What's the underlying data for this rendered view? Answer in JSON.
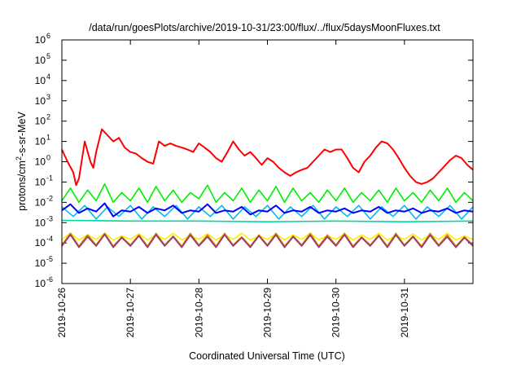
{
  "chart_data": {
    "type": "line",
    "title": "/data/run/goesPlots/archive/2019-10-31/23:00/flux/../flux/5daysMoonFluxes.txt",
    "xlabel": "Coordinated Universal Time (UTC)",
    "ylabel_main": "protons/cm",
    "ylabel_sup": "2",
    "ylabel_rest": "-s-sr-MeV",
    "y_scale": "log",
    "ylim": [
      1e-06,
      1000000.0
    ],
    "xlim": [
      "2019-10-26",
      "2019-11-01"
    ],
    "grid": false,
    "legend": "none",
    "x_ticks": [
      "2019-10-26",
      "2019-10-27",
      "2019-10-28",
      "2019-10-29",
      "2019-10-30",
      "2019-10-31"
    ],
    "y_ticks": [
      {
        "value": 1000000.0,
        "base": "10",
        "exp": "6"
      },
      {
        "value": 100000.0,
        "base": "10",
        "exp": "5"
      },
      {
        "value": 10000.0,
        "base": "10",
        "exp": "4"
      },
      {
        "value": 1000.0,
        "base": "10",
        "exp": "3"
      },
      {
        "value": 100.0,
        "base": "10",
        "exp": "2"
      },
      {
        "value": 10.0,
        "base": "10",
        "exp": "1"
      },
      {
        "value": 1.0,
        "base": "10",
        "exp": "0"
      },
      {
        "value": 0.1,
        "base": "10",
        "exp": "-1"
      },
      {
        "value": 0.01,
        "base": "10",
        "exp": "-2"
      },
      {
        "value": 0.001,
        "base": "10",
        "exp": "-3"
      },
      {
        "value": 0.0001,
        "base": "10",
        "exp": "-4"
      },
      {
        "value": 1e-05,
        "base": "10",
        "exp": "-5"
      },
      {
        "value": 1e-06,
        "base": "10",
        "exp": "-6"
      }
    ],
    "series": [
      {
        "color": "#ff0000",
        "x": [
          "2019-10-26T00:00",
          "2019-10-26T02:00",
          "2019-10-26T04:00",
          "2019-10-26T05:00",
          "2019-10-26T06:00",
          "2019-10-26T08:00",
          "2019-10-26T10:00",
          "2019-10-26T11:00",
          "2019-10-26T12:00",
          "2019-10-26T14:00",
          "2019-10-26T16:00",
          "2019-10-26T18:00",
          "2019-10-26T20:00",
          "2019-10-26T22:00",
          "2019-10-27T00:00",
          "2019-10-27T02:00",
          "2019-10-27T04:00",
          "2019-10-27T06:00",
          "2019-10-27T08:00",
          "2019-10-27T10:00",
          "2019-10-27T12:00",
          "2019-10-27T14:00",
          "2019-10-27T16:00",
          "2019-10-27T18:00",
          "2019-10-27T20:00",
          "2019-10-27T22:00",
          "2019-10-28T00:00",
          "2019-10-28T02:00",
          "2019-10-28T04:00",
          "2019-10-28T06:00",
          "2019-10-28T08:00",
          "2019-10-28T10:00",
          "2019-10-28T12:00",
          "2019-10-28T14:00",
          "2019-10-28T16:00",
          "2019-10-28T18:00",
          "2019-10-28T20:00",
          "2019-10-28T22:00",
          "2019-10-29T00:00",
          "2019-10-29T02:00",
          "2019-10-29T04:00",
          "2019-10-29T06:00",
          "2019-10-29T08:00",
          "2019-10-29T10:00",
          "2019-10-29T12:00",
          "2019-10-29T14:00",
          "2019-10-29T16:00",
          "2019-10-29T18:00",
          "2019-10-29T20:00",
          "2019-10-29T22:00",
          "2019-10-30T00:00",
          "2019-10-30T02:00",
          "2019-10-30T04:00",
          "2019-10-30T06:00",
          "2019-10-30T08:00",
          "2019-10-30T10:00",
          "2019-10-30T12:00",
          "2019-10-30T14:00",
          "2019-10-30T16:00",
          "2019-10-30T18:00",
          "2019-10-30T20:00",
          "2019-10-30T22:00",
          "2019-10-31T00:00",
          "2019-10-31T02:00",
          "2019-10-31T04:00",
          "2019-10-31T06:00",
          "2019-10-31T08:00",
          "2019-10-31T10:00",
          "2019-10-31T12:00",
          "2019-10-31T14:00",
          "2019-10-31T16:00",
          "2019-10-31T18:00",
          "2019-10-31T20:00",
          "2019-10-31T22:00",
          "2019-11-01T00:00"
        ],
        "y": [
          4,
          1,
          0.3,
          0.07,
          0.15,
          10,
          1,
          0.5,
          3,
          40,
          20,
          10,
          15,
          5,
          3,
          2.5,
          1.5,
          1,
          0.8,
          10,
          6,
          8,
          6,
          5,
          4,
          3,
          8,
          5,
          3,
          1.5,
          1,
          3,
          10,
          4,
          2,
          3,
          1.5,
          0.7,
          1.5,
          1,
          0.5,
          0.3,
          0.2,
          0.3,
          0.4,
          0.5,
          1,
          2,
          4,
          3,
          4,
          4,
          1.5,
          0.5,
          0.3,
          1,
          2,
          5,
          10,
          8,
          4,
          1.5,
          0.5,
          0.2,
          0.1,
          0.08,
          0.1,
          0.15,
          0.3,
          0.6,
          1.2,
          2,
          1.5,
          0.7,
          0.4
        ]
      },
      {
        "color": "#00ee00",
        "x": [
          "2019-10-26T00:00",
          "2019-10-26T03:00",
          "2019-10-26T06:00",
          "2019-10-26T09:00",
          "2019-10-26T12:00",
          "2019-10-26T15:00",
          "2019-10-26T18:00",
          "2019-10-26T21:00",
          "2019-10-27T00:00",
          "2019-10-27T03:00",
          "2019-10-27T06:00",
          "2019-10-27T09:00",
          "2019-10-27T12:00",
          "2019-10-27T15:00",
          "2019-10-27T18:00",
          "2019-10-27T21:00",
          "2019-10-28T00:00",
          "2019-10-28T03:00",
          "2019-10-28T06:00",
          "2019-10-28T09:00",
          "2019-10-28T12:00",
          "2019-10-28T15:00",
          "2019-10-28T18:00",
          "2019-10-28T21:00",
          "2019-10-29T00:00",
          "2019-10-29T03:00",
          "2019-10-29T06:00",
          "2019-10-29T09:00",
          "2019-10-29T12:00",
          "2019-10-29T15:00",
          "2019-10-29T18:00",
          "2019-10-29T21:00",
          "2019-10-30T00:00",
          "2019-10-30T03:00",
          "2019-10-30T06:00",
          "2019-10-30T09:00",
          "2019-10-30T12:00",
          "2019-10-30T15:00",
          "2019-10-30T18:00",
          "2019-10-30T21:00",
          "2019-10-31T00:00",
          "2019-10-31T03:00",
          "2019-10-31T06:00",
          "2019-10-31T09:00",
          "2019-10-31T12:00",
          "2019-10-31T15:00",
          "2019-10-31T18:00",
          "2019-10-31T21:00",
          "2019-11-01T00:00"
        ],
        "y": [
          0.012,
          0.05,
          0.01,
          0.04,
          0.012,
          0.08,
          0.01,
          0.03,
          0.012,
          0.05,
          0.01,
          0.06,
          0.012,
          0.04,
          0.01,
          0.03,
          0.015,
          0.07,
          0.01,
          0.03,
          0.012,
          0.05,
          0.01,
          0.04,
          0.012,
          0.06,
          0.01,
          0.05,
          0.012,
          0.03,
          0.01,
          0.04,
          0.012,
          0.05,
          0.01,
          0.03,
          0.012,
          0.04,
          0.01,
          0.05,
          0.012,
          0.03,
          0.01,
          0.04,
          0.012,
          0.05,
          0.01,
          0.03,
          0.012
        ]
      },
      {
        "color": "#00bbee",
        "x": [
          "2019-10-26T00:00",
          "2019-10-26T04:00",
          "2019-10-26T08:00",
          "2019-10-26T12:00",
          "2019-10-26T16:00",
          "2019-10-26T20:00",
          "2019-10-27T00:00",
          "2019-10-27T04:00",
          "2019-10-27T08:00",
          "2019-10-27T12:00",
          "2019-10-27T16:00",
          "2019-10-27T20:00",
          "2019-10-28T00:00",
          "2019-10-28T04:00",
          "2019-10-28T08:00",
          "2019-10-28T12:00",
          "2019-10-28T16:00",
          "2019-10-28T20:00",
          "2019-10-29T00:00",
          "2019-10-29T04:00",
          "2019-10-29T08:00",
          "2019-10-29T12:00",
          "2019-10-29T16:00",
          "2019-10-29T20:00",
          "2019-10-30T00:00",
          "2019-10-30T04:00",
          "2019-10-30T08:00",
          "2019-10-30T12:00",
          "2019-10-30T16:00",
          "2019-10-30T20:00",
          "2019-10-31T00:00",
          "2019-10-31T04:00",
          "2019-10-31T08:00",
          "2019-10-31T12:00",
          "2019-10-31T16:00",
          "2019-10-31T20:00",
          "2019-11-01T00:00"
        ],
        "y": [
          0.006,
          0.002,
          0.007,
          0.0015,
          0.006,
          0.002,
          0.007,
          0.0015,
          0.006,
          0.002,
          0.007,
          0.0015,
          0.006,
          0.002,
          0.007,
          0.0015,
          0.006,
          0.002,
          0.007,
          0.0015,
          0.006,
          0.002,
          0.007,
          0.0015,
          0.006,
          0.002,
          0.007,
          0.0015,
          0.006,
          0.002,
          0.007,
          0.0015,
          0.006,
          0.002,
          0.007,
          0.0015,
          0.006
        ]
      },
      {
        "color": "#0000ff",
        "x": [
          "2019-10-26T00:00",
          "2019-10-26T03:00",
          "2019-10-26T06:00",
          "2019-10-26T09:00",
          "2019-10-26T12:00",
          "2019-10-26T15:00",
          "2019-10-26T18:00",
          "2019-10-26T21:00",
          "2019-10-27T00:00",
          "2019-10-27T03:00",
          "2019-10-27T06:00",
          "2019-10-27T09:00",
          "2019-10-27T12:00",
          "2019-10-27T15:00",
          "2019-10-27T18:00",
          "2019-10-27T21:00",
          "2019-10-28T00:00",
          "2019-10-28T03:00",
          "2019-10-28T06:00",
          "2019-10-28T09:00",
          "2019-10-28T12:00",
          "2019-10-28T15:00",
          "2019-10-28T18:00",
          "2019-10-28T21:00",
          "2019-10-29T00:00",
          "2019-10-29T03:00",
          "2019-10-29T06:00",
          "2019-10-29T09:00",
          "2019-10-29T12:00",
          "2019-10-29T15:00",
          "2019-10-29T18:00",
          "2019-10-29T21:00",
          "2019-10-30T00:00",
          "2019-10-30T03:00",
          "2019-10-30T06:00",
          "2019-10-30T09:00",
          "2019-10-30T12:00",
          "2019-10-30T15:00",
          "2019-10-30T18:00",
          "2019-10-30T21:00",
          "2019-10-31T00:00",
          "2019-10-31T03:00",
          "2019-10-31T06:00",
          "2019-10-31T09:00",
          "2019-10-31T12:00",
          "2019-10-31T15:00",
          "2019-10-31T18:00",
          "2019-10-31T21:00",
          "2019-11-01T00:00"
        ],
        "y": [
          0.004,
          0.008,
          0.003,
          0.005,
          0.0035,
          0.009,
          0.002,
          0.004,
          0.0035,
          0.006,
          0.003,
          0.005,
          0.004,
          0.007,
          0.003,
          0.004,
          0.0035,
          0.008,
          0.003,
          0.004,
          0.0035,
          0.006,
          0.0025,
          0.004,
          0.0035,
          0.007,
          0.003,
          0.004,
          0.0035,
          0.006,
          0.003,
          0.004,
          0.0035,
          0.005,
          0.003,
          0.004,
          0.0035,
          0.006,
          0.003,
          0.004,
          0.0035,
          0.005,
          0.003,
          0.004,
          0.0035,
          0.005,
          0.003,
          0.004,
          0.0035
        ]
      },
      {
        "color": "#00d8a0",
        "x": [
          "2019-10-26T00:00",
          "2019-10-27T00:00",
          "2019-10-28T00:00",
          "2019-10-29T00:00",
          "2019-10-30T00:00",
          "2019-10-31T00:00",
          "2019-11-01T00:00"
        ],
        "y": [
          0.0013,
          0.0012,
          0.0012,
          0.0011,
          0.0012,
          0.0011,
          0.0012
        ]
      },
      {
        "color": "#ffee00",
        "x": [
          "2019-10-26T00:00",
          "2019-10-26T03:00",
          "2019-10-26T06:00",
          "2019-10-26T09:00",
          "2019-10-26T12:00",
          "2019-10-26T15:00",
          "2019-10-26T18:00",
          "2019-10-26T21:00",
          "2019-10-27T00:00",
          "2019-10-27T03:00",
          "2019-10-27T06:00",
          "2019-10-27T09:00",
          "2019-10-27T12:00",
          "2019-10-27T15:00",
          "2019-10-27T18:00",
          "2019-10-27T21:00",
          "2019-10-28T00:00",
          "2019-10-28T03:00",
          "2019-10-28T06:00",
          "2019-10-28T09:00",
          "2019-10-28T12:00",
          "2019-10-28T15:00",
          "2019-10-28T18:00",
          "2019-10-28T21:00",
          "2019-10-29T00:00",
          "2019-10-29T03:00",
          "2019-10-29T06:00",
          "2019-10-29T09:00",
          "2019-10-29T12:00",
          "2019-10-29T15:00",
          "2019-10-29T18:00",
          "2019-10-29T21:00",
          "2019-10-30T00:00",
          "2019-10-30T03:00",
          "2019-10-30T06:00",
          "2019-10-30T09:00",
          "2019-10-30T12:00",
          "2019-10-30T15:00",
          "2019-10-30T18:00",
          "2019-10-30T21:00",
          "2019-10-31T00:00",
          "2019-10-31T03:00",
          "2019-10-31T06:00",
          "2019-10-31T09:00",
          "2019-10-31T12:00",
          "2019-10-31T15:00",
          "2019-10-31T18:00",
          "2019-10-31T21:00",
          "2019-11-01T00:00"
        ],
        "y": [
          0.00015,
          0.0003,
          0.00014,
          0.00025,
          0.00015,
          0.0003,
          0.00014,
          0.00022,
          0.00015,
          0.00028,
          0.00014,
          0.00025,
          0.00015,
          0.0003,
          0.00014,
          0.00022,
          0.00015,
          0.00028,
          0.00014,
          0.00025,
          0.00015,
          0.0003,
          0.00014,
          0.00022,
          0.00015,
          0.00028,
          0.00014,
          0.00025,
          0.00015,
          0.0003,
          0.00014,
          0.00022,
          0.00015,
          0.00028,
          0.00014,
          0.00025,
          0.00015,
          0.0003,
          0.00014,
          0.00022,
          0.00015,
          0.00028,
          0.00014,
          0.00025,
          0.00015,
          0.0003,
          0.00014,
          0.00022,
          0.00015
        ]
      },
      {
        "color": "#cc8800",
        "x": [
          "2019-10-26T00:00",
          "2019-10-26T03:00",
          "2019-10-26T06:00",
          "2019-10-26T09:00",
          "2019-10-26T12:00",
          "2019-10-26T15:00",
          "2019-10-26T18:00",
          "2019-10-26T21:00",
          "2019-10-27T00:00",
          "2019-10-27T03:00",
          "2019-10-27T06:00",
          "2019-10-27T09:00",
          "2019-10-27T12:00",
          "2019-10-27T15:00",
          "2019-10-27T18:00",
          "2019-10-27T21:00",
          "2019-10-28T00:00",
          "2019-10-28T03:00",
          "2019-10-28T06:00",
          "2019-10-28T09:00",
          "2019-10-28T12:00",
          "2019-10-28T15:00",
          "2019-10-28T18:00",
          "2019-10-28T21:00",
          "2019-10-29T00:00",
          "2019-10-29T03:00",
          "2019-10-29T06:00",
          "2019-10-29T09:00",
          "2019-10-29T12:00",
          "2019-10-29T15:00",
          "2019-10-29T18:00",
          "2019-10-29T21:00",
          "2019-10-30T00:00",
          "2019-10-30T03:00",
          "2019-10-30T06:00",
          "2019-10-30T09:00",
          "2019-10-30T12:00",
          "2019-10-30T15:00",
          "2019-10-30T18:00",
          "2019-10-30T21:00",
          "2019-10-31T00:00",
          "2019-10-31T03:00",
          "2019-10-31T06:00",
          "2019-10-31T09:00",
          "2019-10-31T12:00",
          "2019-10-31T15:00",
          "2019-10-31T18:00",
          "2019-10-31T21:00",
          "2019-11-01T00:00"
        ],
        "y": [
          8e-05,
          0.0003,
          7e-05,
          0.00025,
          8e-05,
          0.0003,
          7e-05,
          0.0002,
          8e-05,
          0.00025,
          7e-05,
          0.0003,
          8e-05,
          0.00022,
          7e-05,
          0.0003,
          8e-05,
          0.00025,
          7e-05,
          0.0003,
          8e-05,
          0.0002,
          7e-05,
          0.00025,
          8e-05,
          0.0003,
          7e-05,
          0.00022,
          8e-05,
          0.0003,
          7e-05,
          0.00025,
          8e-05,
          0.0003,
          7e-05,
          0.0002,
          8e-05,
          0.00025,
          7e-05,
          0.0003,
          8e-05,
          0.00022,
          7e-05,
          0.0003,
          8e-05,
          0.00025,
          7e-05,
          0.0002,
          8e-05
        ]
      },
      {
        "color": "#993377",
        "x": [
          "2019-10-26T00:00",
          "2019-10-26T03:00",
          "2019-10-26T06:00",
          "2019-10-26T09:00",
          "2019-10-26T12:00",
          "2019-10-26T15:00",
          "2019-10-26T18:00",
          "2019-10-26T21:00",
          "2019-10-27T00:00",
          "2019-10-27T03:00",
          "2019-10-27T06:00",
          "2019-10-27T09:00",
          "2019-10-27T12:00",
          "2019-10-27T15:00",
          "2019-10-27T18:00",
          "2019-10-27T21:00",
          "2019-10-28T00:00",
          "2019-10-28T03:00",
          "2019-10-28T06:00",
          "2019-10-28T09:00",
          "2019-10-28T12:00",
          "2019-10-28T15:00",
          "2019-10-28T18:00",
          "2019-10-28T21:00",
          "2019-10-29T00:00",
          "2019-10-29T03:00",
          "2019-10-29T06:00",
          "2019-10-29T09:00",
          "2019-10-29T12:00",
          "2019-10-29T15:00",
          "2019-10-29T18:00",
          "2019-10-29T21:00",
          "2019-10-30T00:00",
          "2019-10-30T03:00",
          "2019-10-30T06:00",
          "2019-10-30T09:00",
          "2019-10-30T12:00",
          "2019-10-30T15:00",
          "2019-10-30T18:00",
          "2019-10-30T21:00",
          "2019-10-31T00:00",
          "2019-10-31T03:00",
          "2019-10-31T06:00",
          "2019-10-31T09:00",
          "2019-10-31T12:00",
          "2019-10-31T15:00",
          "2019-10-31T18:00",
          "2019-10-31T21:00",
          "2019-11-01T00:00"
        ],
        "y": [
          7e-05,
          0.00025,
          6e-05,
          0.0002,
          7e-05,
          0.00026,
          6e-05,
          0.00018,
          7e-05,
          0.00022,
          6e-05,
          0.00025,
          7e-05,
          0.0002,
          6e-05,
          0.00024,
          7e-05,
          0.0002,
          6e-05,
          0.00025,
          7e-05,
          0.00018,
          6e-05,
          0.00022,
          7e-05,
          0.00025,
          6e-05,
          0.0002,
          7e-05,
          0.00024,
          6e-05,
          0.0002,
          7e-05,
          0.00025,
          6e-05,
          0.00018,
          7e-05,
          0.00022,
          6e-05,
          0.00025,
          7e-05,
          0.0002,
          6e-05,
          0.00024,
          7e-05,
          0.0002,
          6e-05,
          0.00018,
          7e-05
        ]
      }
    ]
  }
}
